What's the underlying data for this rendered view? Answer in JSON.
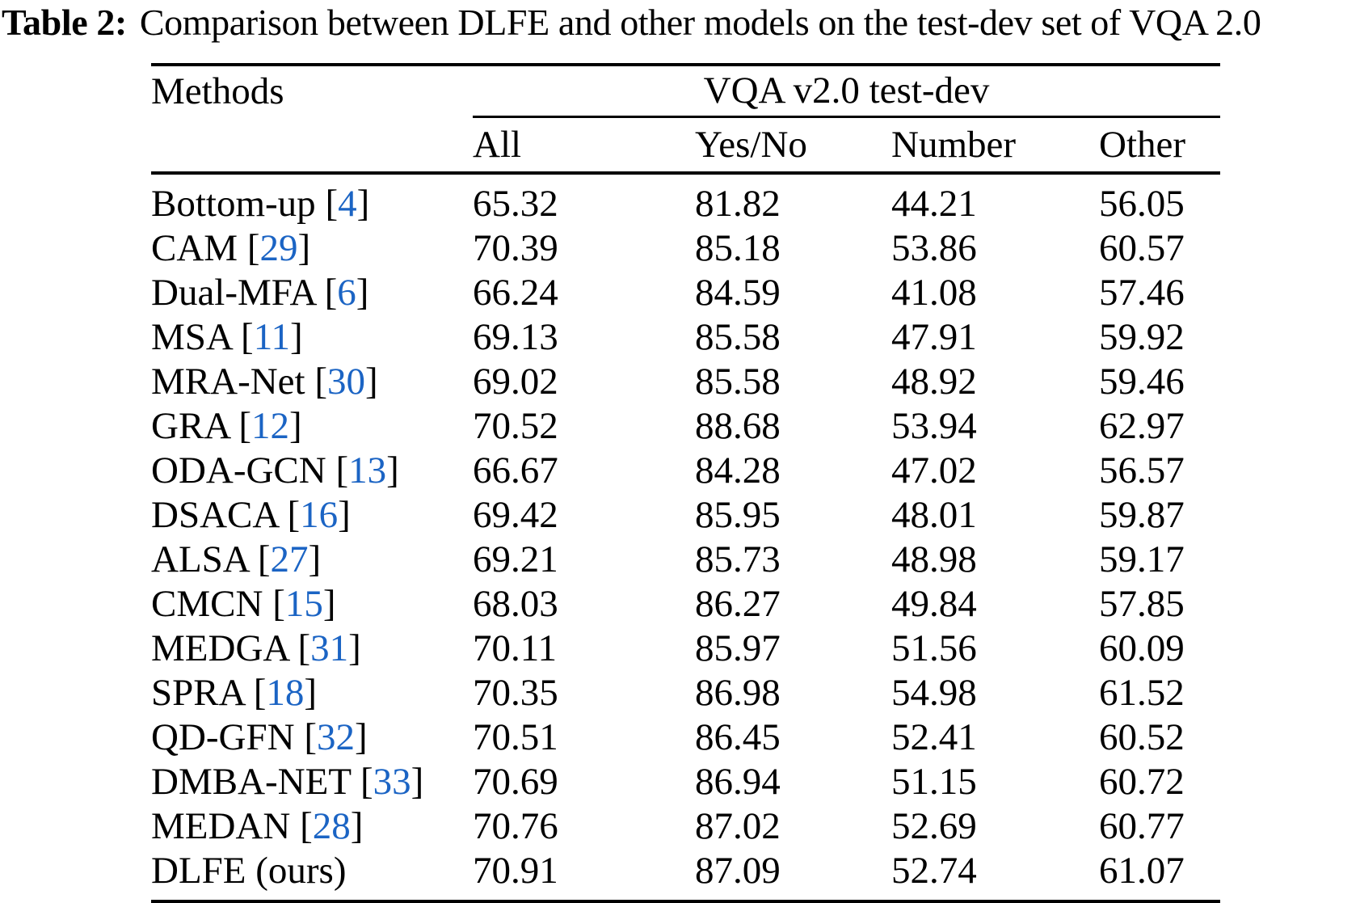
{
  "caption": {
    "label": "Table 2:",
    "text": "Comparison between DLFE and other models on the test-dev set of VQA 2.0"
  },
  "colors": {
    "citation": "#1B64C4",
    "text": "#000000",
    "background": "#FFFFFF"
  },
  "table": {
    "headers": {
      "methods": "Methods",
      "group": "VQA v2.0 test-dev",
      "all": "All",
      "yes_no": "Yes/No",
      "number": "Number",
      "other": "Other"
    },
    "rows": [
      {
        "method": "Bottom-up",
        "open": "[",
        "cite": "4",
        "close": "]",
        "all": "65.32",
        "yes_no": "81.82",
        "number": "44.21",
        "other": "56.05"
      },
      {
        "method": "CAM",
        "open": "[",
        "cite": "29",
        "close": "]",
        "all": "70.39",
        "yes_no": "85.18",
        "number": "53.86",
        "other": "60.57"
      },
      {
        "method": "Dual-MFA",
        "open": "[",
        "cite": "6",
        "close": "]",
        "all": "66.24",
        "yes_no": "84.59",
        "number": "41.08",
        "other": "57.46"
      },
      {
        "method": "MSA",
        "open": "[",
        "cite": "11",
        "close": "]",
        "all": "69.13",
        "yes_no": "85.58",
        "number": "47.91",
        "other": "59.92"
      },
      {
        "method": "MRA-Net",
        "open": "[",
        "cite": "30",
        "close": "]",
        "all": "69.02",
        "yes_no": "85.58",
        "number": "48.92",
        "other": "59.46"
      },
      {
        "method": "GRA",
        "open": "[",
        "cite": "12",
        "close": "]",
        "all": "70.52",
        "yes_no": "88.68",
        "number": "53.94",
        "other": "62.97"
      },
      {
        "method": "ODA-GCN",
        "open": "[",
        "cite": "13",
        "close": "]",
        "all": "66.67",
        "yes_no": "84.28",
        "number": "47.02",
        "other": "56.57"
      },
      {
        "method": "DSACA",
        "open": "[",
        "cite": "16",
        "close": "]",
        "all": "69.42",
        "yes_no": "85.95",
        "number": "48.01",
        "other": "59.87"
      },
      {
        "method": "ALSA",
        "open": "[",
        "cite": "27",
        "close": "]",
        "all": "69.21",
        "yes_no": "85.73",
        "number": "48.98",
        "other": "59.17"
      },
      {
        "method": "CMCN",
        "open": "[",
        "cite": "15",
        "close": "]",
        "all": "68.03",
        "yes_no": "86.27",
        "number": "49.84",
        "other": "57.85"
      },
      {
        "method": "MEDGA",
        "open": "[",
        "cite": "31",
        "close": "]",
        "all": "70.11",
        "yes_no": "85.97",
        "number": "51.56",
        "other": "60.09"
      },
      {
        "method": "SPRA",
        "open": "[",
        "cite": "18",
        "close": "]",
        "all": "70.35",
        "yes_no": "86.98",
        "number": "54.98",
        "other": "61.52"
      },
      {
        "method": "QD-GFN",
        "open": "[",
        "cite": "32",
        "close": "]",
        "all": "70.51",
        "yes_no": "86.45",
        "number": "52.41",
        "other": "60.52"
      },
      {
        "method": "DMBA-NET",
        "open": "[",
        "cite": "33",
        "close": "]",
        "all": "70.69",
        "yes_no": "86.94",
        "number": "51.15",
        "other": "60.72"
      },
      {
        "method": "MEDAN",
        "open": "[",
        "cite": "28",
        "close": "]",
        "all": "70.76",
        "yes_no": "87.02",
        "number": "52.69",
        "other": "60.77"
      },
      {
        "method": "DLFE (ours)",
        "all": "70.91",
        "yes_no": "87.09",
        "number": "52.74",
        "other": "61.07"
      }
    ]
  }
}
